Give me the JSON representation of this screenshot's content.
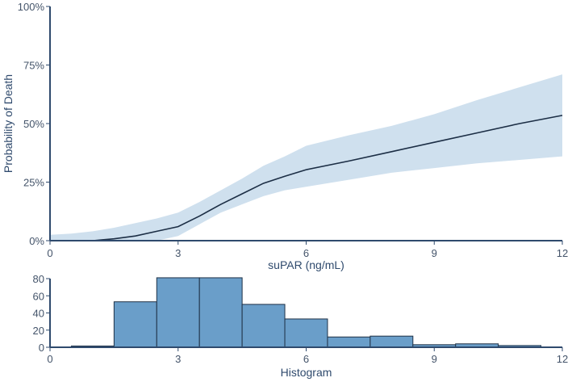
{
  "chart_data": [
    {
      "type": "line",
      "xlabel": "suPAR (ng/mL)",
      "ylabel": "Probability of Death",
      "xlim": [
        0,
        12
      ],
      "ylim": [
        0,
        100
      ],
      "xticks": [
        0,
        3,
        6,
        9,
        12
      ],
      "xtick_labels": [
        "0",
        "3",
        "6",
        "9",
        "12"
      ],
      "yticks": [
        0,
        25,
        50,
        75,
        100
      ],
      "ytick_labels": [
        "0%",
        "25%",
        "50%",
        "75%",
        "100%"
      ],
      "grid": false,
      "colors": {
        "line": "#1c2e45",
        "band": "#cfe0ee",
        "axis": "#2f4a6d"
      },
      "series": [
        {
          "x": [
            0,
            0.5,
            1,
            1.5,
            2,
            2.5,
            3,
            3.5,
            4,
            4.5,
            5,
            5.5,
            6,
            7,
            8,
            9,
            10,
            11,
            12
          ],
          "y": [
            0,
            0,
            0,
            0.8,
            2,
            4,
            6,
            10.5,
            15.5,
            20,
            24.5,
            27.5,
            30.3,
            34,
            38,
            42,
            46,
            50,
            53.5
          ],
          "lower": [
            0,
            0,
            0,
            0,
            0,
            0,
            2,
            7,
            12,
            15.5,
            19,
            21.5,
            23,
            26,
            29,
            31,
            33,
            34.5,
            36
          ],
          "upper": [
            2.5,
            3,
            4,
            5.5,
            7.5,
            9.5,
            12,
            16.5,
            21.5,
            26.5,
            32,
            36,
            40.5,
            45,
            49,
            54,
            60,
            65.5,
            71
          ]
        }
      ]
    },
    {
      "type": "bar",
      "xlabel": "Histogram",
      "xlim": [
        0,
        12
      ],
      "ylim": [
        0,
        80
      ],
      "xticks": [
        0,
        3,
        6,
        9,
        12
      ],
      "xtick_labels": [
        "0",
        "3",
        "6",
        "9",
        "12"
      ],
      "yticks": [
        0,
        20,
        40,
        60,
        80
      ],
      "ytick_labels": [
        "0",
        "20",
        "40",
        "60",
        "80"
      ],
      "grid": false,
      "colors": {
        "bar": "#6a9ec9",
        "edge": "#1f3146",
        "axis": "#2f4a6d"
      },
      "bins": [
        {
          "x0": 0.5,
          "x1": 1.5,
          "value": 1.5
        },
        {
          "x0": 1.5,
          "x1": 2.5,
          "value": 53
        },
        {
          "x0": 2.5,
          "x1": 3.5,
          "value": 81
        },
        {
          "x0": 3.5,
          "x1": 4.5,
          "value": 81
        },
        {
          "x0": 4.5,
          "x1": 5.5,
          "value": 50
        },
        {
          "x0": 5.5,
          "x1": 6.5,
          "value": 33
        },
        {
          "x0": 6.5,
          "x1": 7.5,
          "value": 12
        },
        {
          "x0": 7.5,
          "x1": 8.5,
          "value": 13
        },
        {
          "x0": 8.5,
          "x1": 9.5,
          "value": 3
        },
        {
          "x0": 9.5,
          "x1": 10.5,
          "value": 4
        },
        {
          "x0": 10.5,
          "x1": 11.5,
          "value": 2
        }
      ]
    }
  ]
}
